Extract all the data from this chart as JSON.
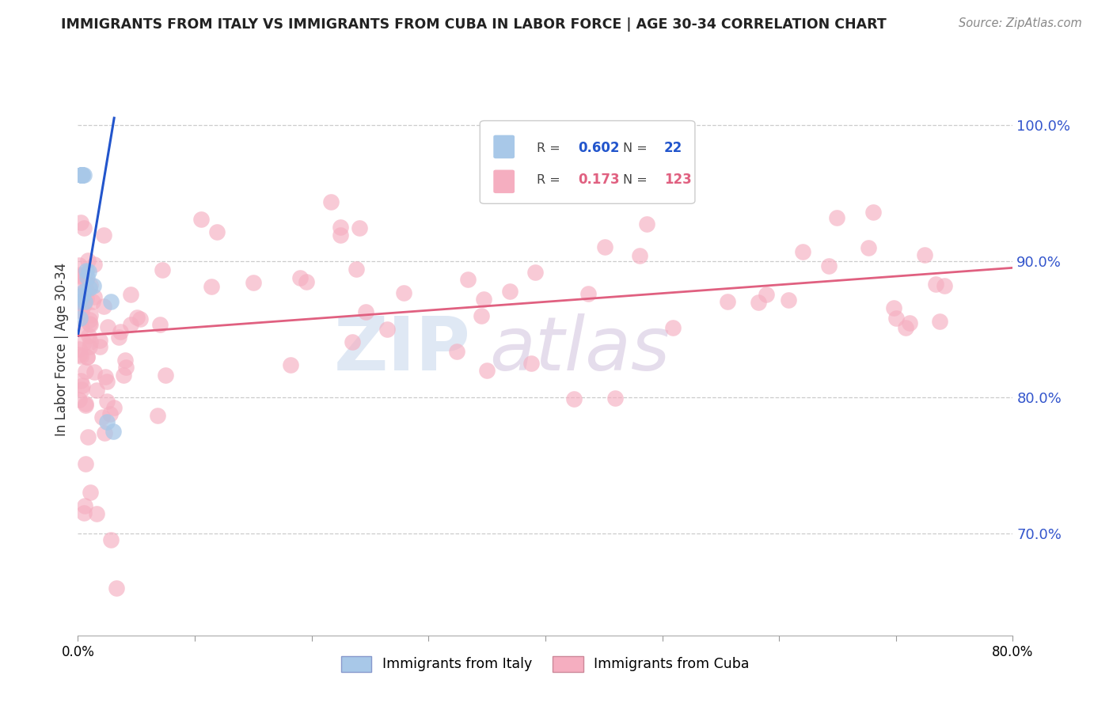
{
  "title": "IMMIGRANTS FROM ITALY VS IMMIGRANTS FROM CUBA IN LABOR FORCE | AGE 30-34 CORRELATION CHART",
  "source": "Source: ZipAtlas.com",
  "ylabel": "In Labor Force | Age 30-34",
  "italy_R": 0.602,
  "italy_N": 22,
  "cuba_R": 0.173,
  "cuba_N": 123,
  "italy_color": "#a8c8e8",
  "cuba_color": "#f5aec0",
  "italy_line_color": "#2255cc",
  "cuba_line_color": "#e06080",
  "right_axis_color": "#3355cc",
  "watermark_zip_color": "#c8d8f0",
  "watermark_atlas_color": "#c8b8d8",
  "italy_x": [
    0.001,
    0.002,
    0.003,
    0.003,
    0.003,
    0.003,
    0.003,
    0.003,
    0.004,
    0.004,
    0.004,
    0.005,
    0.005,
    0.006,
    0.007,
    0.008,
    0.009,
    0.01,
    0.013,
    0.025,
    0.028,
    0.03
  ],
  "italy_y": [
    0.87,
    0.858,
    0.963,
    0.963,
    0.963,
    0.963,
    0.963,
    0.963,
    0.963,
    0.963,
    0.875,
    0.878,
    0.963,
    0.87,
    0.893,
    0.888,
    0.892,
    0.88,
    0.882,
    0.782,
    0.87,
    0.775
  ],
  "italy_trend_x": [
    0.0,
    0.031
  ],
  "italy_trend_y": [
    0.845,
    1.005
  ],
  "cuba_trend_x": [
    0.0,
    0.8
  ],
  "cuba_trend_y": [
    0.845,
    0.895
  ],
  "xlim": [
    0.0,
    0.8
  ],
  "ylim": [
    0.625,
    1.045
  ],
  "ytick_vals": [
    1.0,
    0.9,
    0.8,
    0.7
  ],
  "ytick_labels": [
    "100.0%",
    "90.0%",
    "80.0%",
    "70.0%"
  ]
}
